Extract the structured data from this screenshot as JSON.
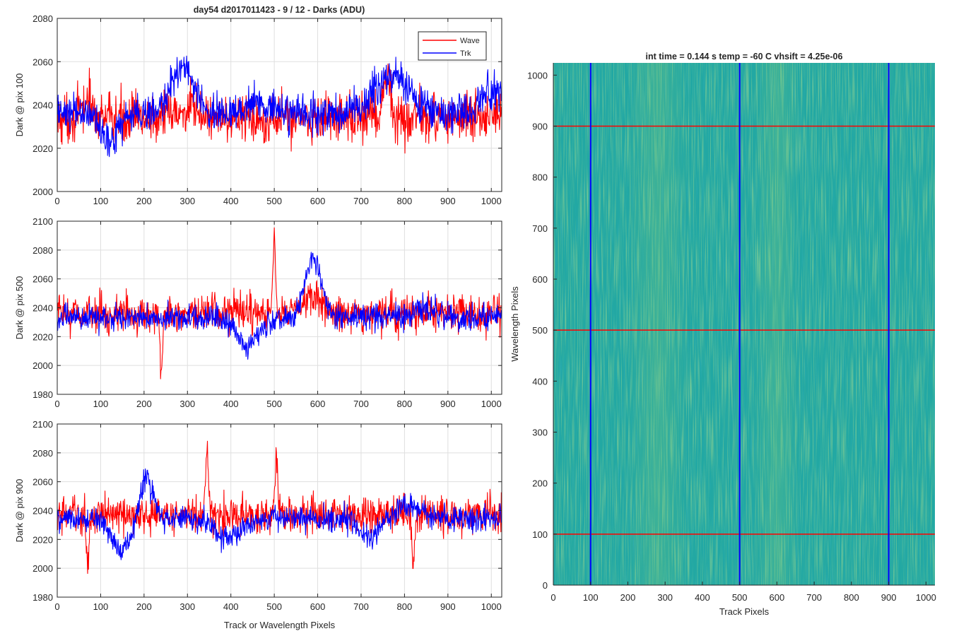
{
  "figure": {
    "title_left": "day54 d2017011423 - 9 / 12 - Darks (ADU)",
    "title_right": "int time = 0.144 s   temp = -60 C   vhsift = 4.25e-06",
    "legend": [
      "Wave",
      "Trk"
    ],
    "colors": {
      "wave": "#ff0000",
      "trk": "#0000ff",
      "grid": "#dfdfdf",
      "axis": "#262626"
    }
  },
  "chart_data": [
    {
      "type": "line",
      "ylabel": "Dark @ pix 100",
      "xlabel": "",
      "xlim": [
        0,
        1024
      ],
      "ylim": [
        2000,
        2080
      ],
      "xticks": [
        0,
        100,
        200,
        300,
        400,
        500,
        600,
        700,
        800,
        900,
        1000
      ],
      "yticks": [
        2000,
        2020,
        2040,
        2060,
        2080
      ],
      "grid": true,
      "legend_position": "top-right",
      "series": [
        {
          "name": "Wave",
          "color": "#ff0000",
          "n": 1024,
          "level": 2034,
          "noise": 8,
          "features": [
            [
              70,
              10,
              8
            ],
            [
              300,
              30,
              3
            ],
            [
              760,
              8,
              18
            ]
          ]
        },
        {
          "name": "Trk",
          "color": "#0000ff",
          "n": 1024,
          "level": 2036,
          "noise": 6,
          "features": [
            [
              120,
              20,
              -12
            ],
            [
              290,
              25,
              22
            ],
            [
              460,
              30,
              6
            ],
            [
              770,
              40,
              18
            ],
            [
              1000,
              30,
              10
            ]
          ]
        }
      ]
    },
    {
      "type": "line",
      "ylabel": "Dark @ pix 500",
      "xlabel": "",
      "xlim": [
        0,
        1024
      ],
      "ylim": [
        1980,
        2100
      ],
      "xticks": [
        0,
        100,
        200,
        300,
        400,
        500,
        600,
        700,
        800,
        900,
        1000
      ],
      "yticks": [
        1980,
        2000,
        2020,
        2040,
        2060,
        2080,
        2100
      ],
      "grid": true,
      "series": [
        {
          "name": "Wave",
          "color": "#ff0000",
          "n": 1024,
          "level": 2036,
          "noise": 9,
          "features": [
            [
              240,
              3,
              -45
            ],
            [
              500,
              3,
              48
            ],
            [
              590,
              25,
              10
            ]
          ]
        },
        {
          "name": "Trk",
          "color": "#0000ff",
          "n": 1024,
          "level": 2033,
          "noise": 6,
          "features": [
            [
              440,
              25,
              -18
            ],
            [
              590,
              18,
              40
            ],
            [
              850,
              30,
              6
            ]
          ]
        }
      ]
    },
    {
      "type": "line",
      "ylabel": "Dark @ pix 900",
      "xlabel": "Track or Wavelength Pixels",
      "xlim": [
        0,
        1024
      ],
      "ylim": [
        1980,
        2100
      ],
      "xticks": [
        0,
        100,
        200,
        300,
        400,
        500,
        600,
        700,
        800,
        900,
        1000
      ],
      "yticks": [
        1980,
        2000,
        2020,
        2040,
        2060,
        2080,
        2100
      ],
      "grid": true,
      "series": [
        {
          "name": "Wave",
          "color": "#ff0000",
          "n": 1024,
          "level": 2037,
          "noise": 9,
          "features": [
            [
              345,
              3,
              45
            ],
            [
              505,
              3,
              40
            ],
            [
              820,
              3,
              -35
            ],
            [
              70,
              3,
              -35
            ]
          ]
        },
        {
          "name": "Trk",
          "color": "#0000ff",
          "n": 1024,
          "level": 2034,
          "noise": 6,
          "features": [
            [
              150,
              20,
              -22
            ],
            [
              205,
              15,
              28
            ],
            [
              390,
              30,
              -12
            ],
            [
              720,
              20,
              -12
            ],
            [
              810,
              30,
              10
            ]
          ]
        }
      ]
    },
    {
      "type": "heatmap",
      "xlabel": "Track Pixels",
      "ylabel": "Wavelength Pixels",
      "xlim": [
        0,
        1024
      ],
      "ylim": [
        0,
        1024
      ],
      "xticks": [
        0,
        100,
        200,
        300,
        400,
        500,
        600,
        700,
        800,
        900,
        1000
      ],
      "yticks": [
        0,
        100,
        200,
        300,
        400,
        500,
        600,
        700,
        800,
        900,
        1000
      ],
      "base_color": "#22a8a3",
      "bright_bands": [
        {
          "center": 600,
          "width": 60
        },
        {
          "center": 280,
          "width": 80
        }
      ],
      "vertical_markers": [
        100,
        500,
        900
      ],
      "horizontal_markers": [
        100,
        500,
        900
      ],
      "marker_colors": {
        "vertical": "#0000ff",
        "horizontal": "#ff0000"
      }
    }
  ]
}
